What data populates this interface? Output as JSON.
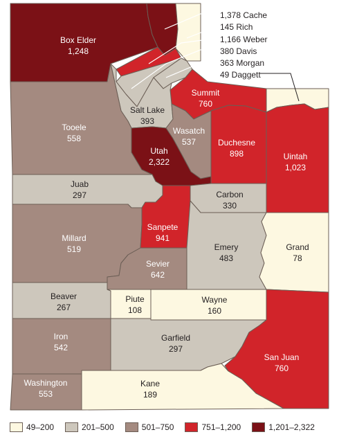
{
  "legend": [
    {
      "label": "49–200",
      "color": "#fdf8e1"
    },
    {
      "label": "201–500",
      "color": "#cdc7bc"
    },
    {
      "label": "501–750",
      "color": "#a48a80"
    },
    {
      "label": "751–1,200",
      "color": "#d1242a"
    },
    {
      "label": "1,201–2,322",
      "color": "#7b1116"
    }
  ],
  "counties": [
    {
      "id": "box-elder",
      "name": "Box Elder",
      "value": "1,248",
      "color": "#7b1116"
    },
    {
      "id": "cache",
      "name": "Cache",
      "value": "1,378",
      "color": "#7b1116"
    },
    {
      "id": "rich",
      "name": "Rich",
      "value": "145",
      "color": "#fdf8e1"
    },
    {
      "id": "weber",
      "name": "Weber",
      "value": "1,166",
      "color": "#d1242a"
    },
    {
      "id": "davis",
      "name": "Davis",
      "value": "380",
      "color": "#cdc7bc"
    },
    {
      "id": "morgan",
      "name": "Morgan",
      "value": "363",
      "color": "#cdc7bc"
    },
    {
      "id": "daggett",
      "name": "Daggett",
      "value": "49",
      "color": "#fdf8e1"
    },
    {
      "id": "summit",
      "name": "Summit",
      "value": "760",
      "color": "#d1242a"
    },
    {
      "id": "salt-lake",
      "name": "Salt Lake",
      "value": "393",
      "color": "#cdc7bc"
    },
    {
      "id": "tooele",
      "name": "Tooele",
      "value": "558",
      "color": "#a48a80"
    },
    {
      "id": "wasatch",
      "name": "Wasatch",
      "value": "537",
      "color": "#a48a80"
    },
    {
      "id": "duchesne",
      "name": "Duchesne",
      "value": "898",
      "color": "#d1242a"
    },
    {
      "id": "uintah",
      "name": "Uintah",
      "value": "1,023",
      "color": "#d1242a"
    },
    {
      "id": "utah",
      "name": "Utah",
      "value": "2,322",
      "color": "#7b1116"
    },
    {
      "id": "juab",
      "name": "Juab",
      "value": "297",
      "color": "#cdc7bc"
    },
    {
      "id": "carbon",
      "name": "Carbon",
      "value": "330",
      "color": "#cdc7bc"
    },
    {
      "id": "millard",
      "name": "Millard",
      "value": "519",
      "color": "#a48a80"
    },
    {
      "id": "sanpete",
      "name": "Sanpete",
      "value": "941",
      "color": "#d1242a"
    },
    {
      "id": "emery",
      "name": "Emery",
      "value": "483",
      "color": "#cdc7bc"
    },
    {
      "id": "grand",
      "name": "Grand",
      "value": "78",
      "color": "#fdf8e1"
    },
    {
      "id": "sevier",
      "name": "Sevier",
      "value": "642",
      "color": "#a48a80"
    },
    {
      "id": "beaver",
      "name": "Beaver",
      "value": "267",
      "color": "#cdc7bc"
    },
    {
      "id": "piute",
      "name": "Piute",
      "value": "108",
      "color": "#fdf8e1"
    },
    {
      "id": "wayne",
      "name": "Wayne",
      "value": "160",
      "color": "#fdf8e1"
    },
    {
      "id": "iron",
      "name": "Iron",
      "value": "542",
      "color": "#a48a80"
    },
    {
      "id": "garfield",
      "name": "Garfield",
      "value": "297",
      "color": "#cdc7bc"
    },
    {
      "id": "san-juan",
      "name": "San Juan",
      "value": "760",
      "color": "#d1242a"
    },
    {
      "id": "washington",
      "name": "Washington",
      "value": "553",
      "color": "#a48a80"
    },
    {
      "id": "kane",
      "name": "Kane",
      "value": "189",
      "color": "#fdf8e1"
    }
  ],
  "callouts": [
    {
      "id": "cache",
      "text": "1,378 Cache"
    },
    {
      "id": "rich",
      "text": "145 Rich"
    },
    {
      "id": "weber",
      "text": "1,166 Weber"
    },
    {
      "id": "davis",
      "text": "380 Davis"
    },
    {
      "id": "morgan",
      "text": "363 Morgan"
    },
    {
      "id": "daggett",
      "text": "49 Daggett"
    }
  ]
}
